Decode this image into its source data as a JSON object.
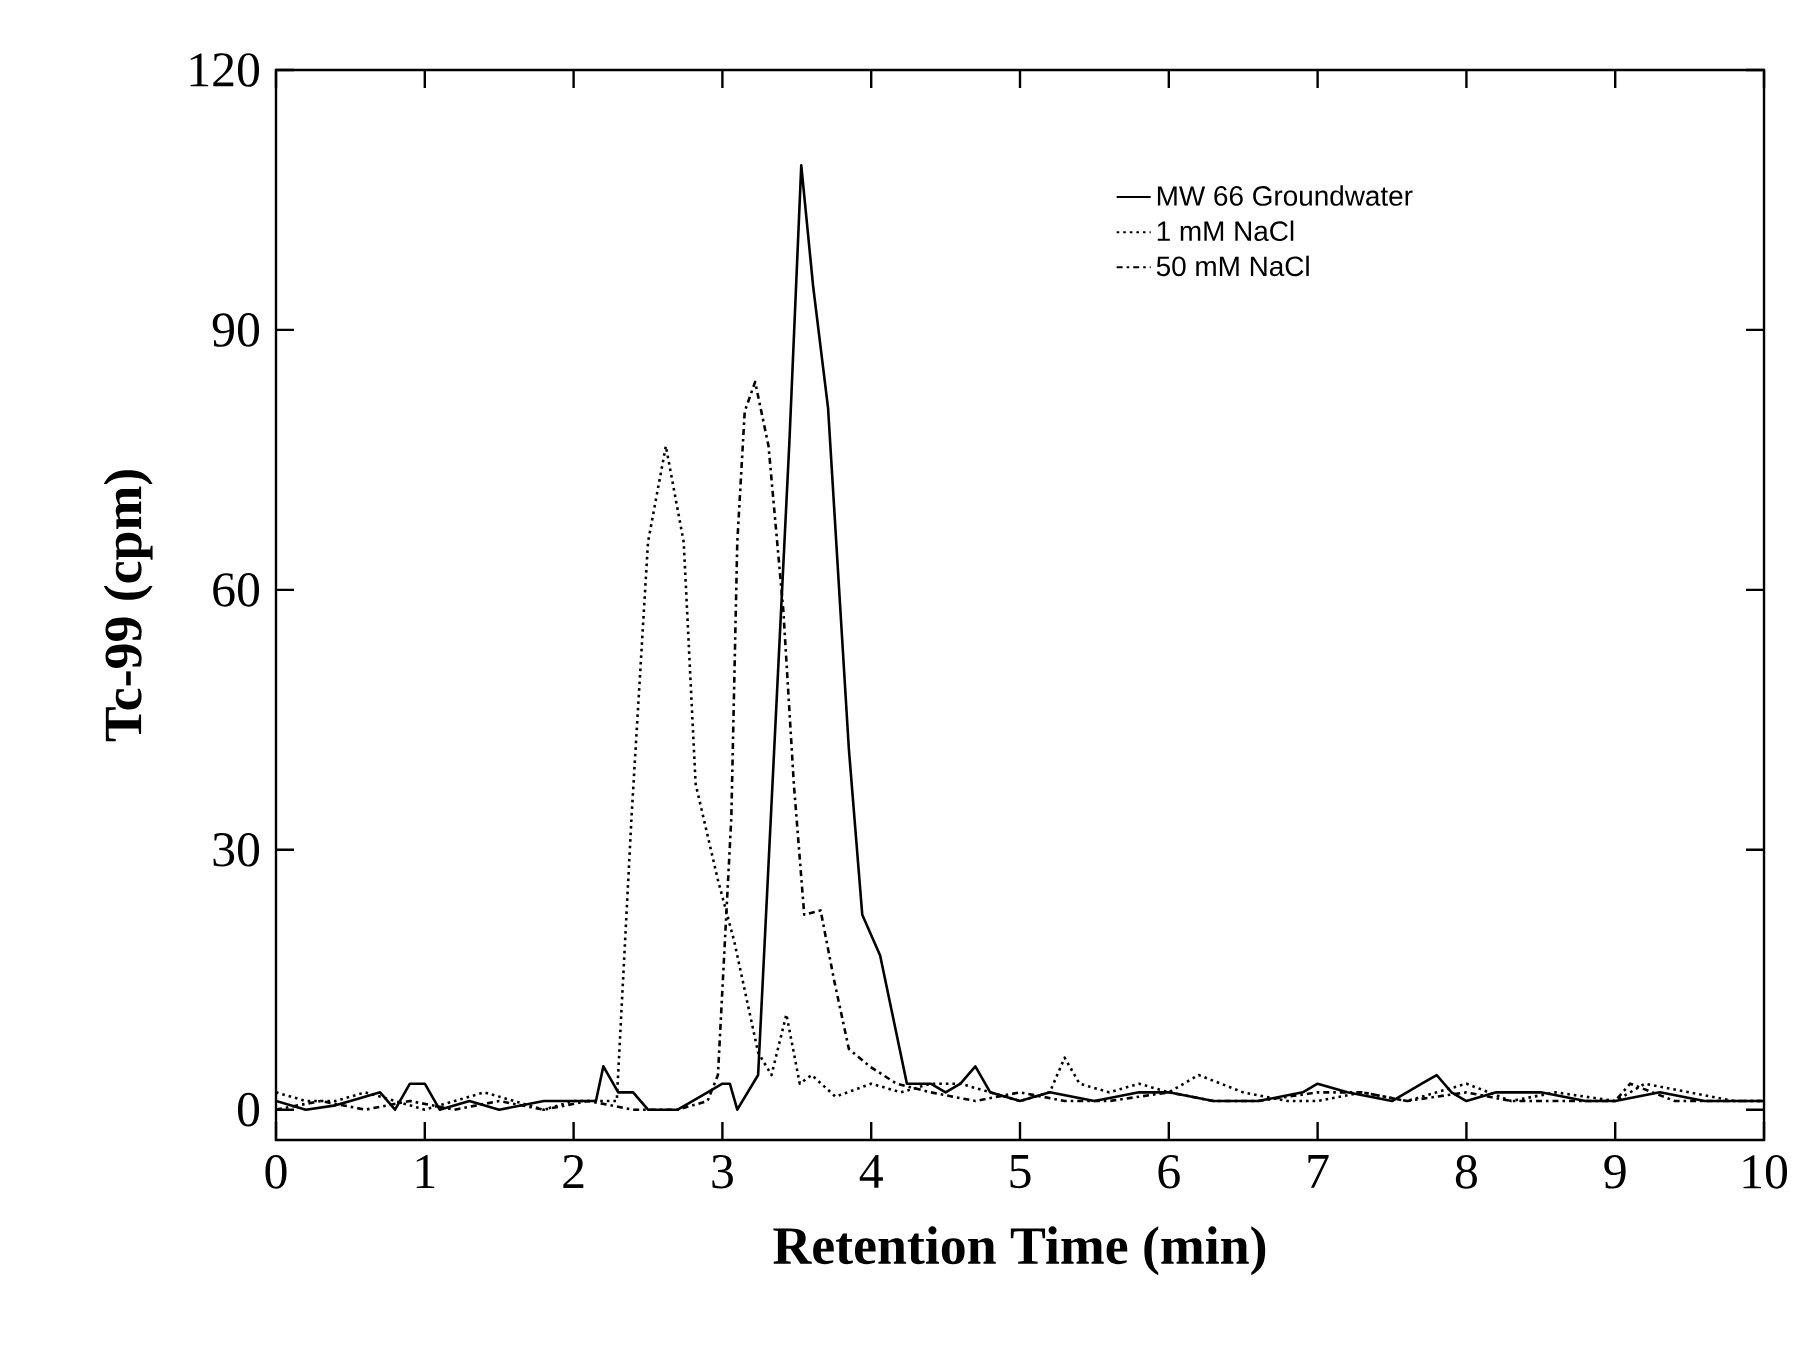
{
  "chart_data": {
    "type": "line",
    "xlabel": "Retention Time (min)",
    "ylabel": "Tc-99 (cpm)",
    "xlim": [
      0,
      10
    ],
    "ylim": [
      -3.5,
      120
    ],
    "xticks": [
      0,
      1,
      2,
      3,
      4,
      5,
      6,
      7,
      8,
      9,
      10
    ],
    "yticks": [
      0,
      30,
      60,
      90,
      120
    ],
    "grid": false,
    "legend": "top right",
    "marker": "none",
    "series": [
      {
        "name": "MW 66 Groundwater",
        "color": "#000000",
        "line_style": "solid",
        "x": [
          0,
          0.2,
          0.4,
          0.5,
          0.7,
          0.8,
          0.9,
          1.0,
          1.1,
          1.3,
          1.5,
          1.8,
          2.0,
          2.15,
          2.2,
          2.3,
          2.4,
          2.5,
          2.7,
          2.9,
          3.0,
          3.05,
          3.1,
          3.24,
          3.45,
          3.53,
          3.61,
          3.71,
          3.85,
          3.94,
          4.06,
          4.24,
          4.4,
          4.5,
          4.6,
          4.7,
          4.8,
          5.0,
          5.2,
          5.5,
          5.8,
          6.0,
          6.3,
          6.6,
          6.9,
          7.0,
          7.2,
          7.5,
          7.7,
          7.8,
          7.9,
          8.0,
          8.2,
          8.5,
          8.8,
          9.0,
          9.3,
          9.6,
          10
        ],
        "values": [
          1,
          0,
          0.5,
          1,
          2,
          0,
          3,
          3,
          0,
          1,
          0,
          1,
          1,
          1,
          5,
          2,
          2,
          0,
          0,
          2,
          3,
          3,
          0,
          4,
          77,
          109,
          95,
          81,
          41.6,
          22.5,
          17.8,
          3,
          3,
          2,
          3,
          5,
          2,
          1,
          2,
          1,
          2,
          2,
          1,
          1,
          2,
          3,
          2,
          1,
          3,
          4,
          2,
          1,
          2,
          2,
          1,
          1,
          2,
          1,
          1
        ]
      },
      {
        "name": "1 mM NaCl",
        "color": "#000000",
        "line_style": "dotted",
        "x": [
          0,
          0.2,
          0.4,
          0.6,
          0.8,
          1.0,
          1.2,
          1.4,
          1.6,
          1.8,
          2.0,
          2.2,
          2.29,
          2.39,
          2.5,
          2.62,
          2.74,
          2.82,
          2.97,
          3.08,
          3.24,
          3.33,
          3.43,
          3.52,
          3.6,
          3.76,
          4.0,
          4.2,
          4.4,
          4.6,
          4.8,
          5.0,
          5.2,
          5.3,
          5.4,
          5.6,
          5.8,
          6.0,
          6.2,
          6.5,
          6.8,
          7.0,
          7.3,
          7.6,
          7.8,
          8.0,
          8.3,
          8.6,
          9.0,
          9.2,
          9.5,
          9.8,
          10
        ],
        "values": [
          2,
          1,
          1,
          2,
          1,
          0,
          1,
          2,
          1,
          0,
          1,
          1,
          1,
          34,
          65.5,
          76.6,
          65.5,
          37.6,
          26.5,
          19.4,
          6.6,
          4,
          11,
          3,
          4,
          1.5,
          3,
          2,
          3,
          3,
          2,
          1,
          2,
          6,
          3,
          2,
          3,
          2,
          4,
          2,
          1,
          1,
          2,
          1,
          2,
          3,
          1,
          2,
          1,
          3,
          2,
          1,
          1
        ]
      },
      {
        "name": "50 mM NaCl",
        "color": "#000000",
        "line_style": "dashdot",
        "x": [
          0,
          0.3,
          0.6,
          0.9,
          1.2,
          1.5,
          1.8,
          2.1,
          2.4,
          2.7,
          2.9,
          2.97,
          3.06,
          3.1,
          3.15,
          3.22,
          3.31,
          3.41,
          3.48,
          3.55,
          3.66,
          3.75,
          3.85,
          3.99,
          4.17,
          4.4,
          4.7,
          5.0,
          5.3,
          5.6,
          6.0,
          6.3,
          6.6,
          7.0,
          7.3,
          7.6,
          8.0,
          8.3,
          8.6,
          9.0,
          9.1,
          9.4,
          9.7,
          10
        ],
        "values": [
          0,
          1,
          0,
          1,
          0,
          1,
          0,
          1,
          0,
          0,
          1,
          4,
          33.7,
          65.5,
          80.6,
          84,
          76.6,
          57.5,
          37.6,
          22.5,
          23,
          15,
          7,
          5,
          3,
          2,
          1,
          2,
          1,
          1,
          2,
          1,
          1,
          2,
          2,
          1,
          2,
          1,
          1,
          1,
          3,
          1,
          1,
          1
        ]
      }
    ]
  }
}
